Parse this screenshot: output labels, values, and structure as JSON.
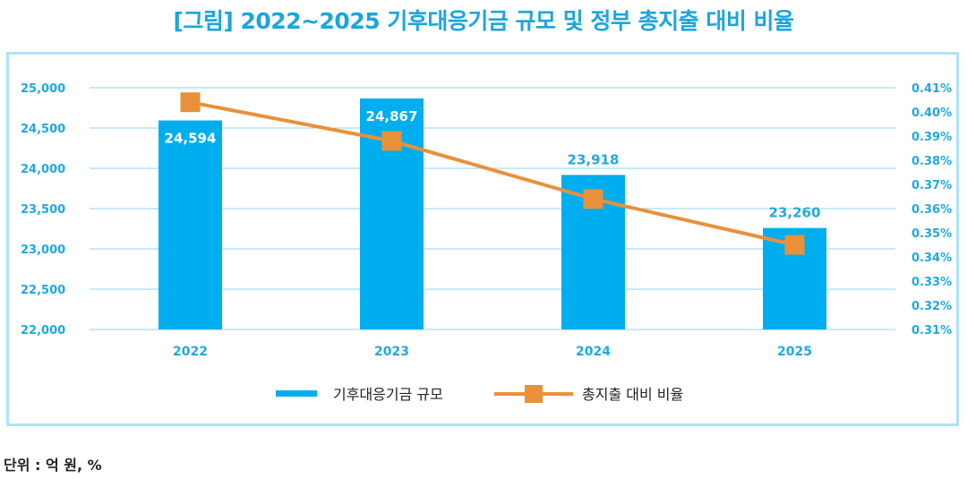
{
  "title": "[그림] 2022~2025 기후대응기금 규모 및 정부 총지출 대비 비율",
  "unit_note": "단위 : 억 원, %",
  "colors": {
    "bar": "#00aeef",
    "line": "#e8913a",
    "title": "#1ba6dc",
    "axis_text": "#21a9dd",
    "grid": "#8fd6ee",
    "frame": "#aee3f3"
  },
  "chart_data": {
    "type": "bar",
    "categories": [
      "2022",
      "2023",
      "2024",
      "2025"
    ],
    "series": [
      {
        "name": "기후대응기금 규모",
        "type": "bar",
        "axis": "left",
        "values": [
          24594,
          24867,
          23918,
          23260
        ],
        "labels": [
          "24,594",
          "24,867",
          "23,918",
          "23,260"
        ]
      },
      {
        "name": "총지출 대비 비율",
        "type": "line",
        "axis": "right",
        "values": [
          0.404,
          0.388,
          0.364,
          0.345
        ]
      }
    ],
    "y_left": {
      "ylim": [
        22000,
        25000
      ],
      "ticks": [
        "22,000",
        "22,500",
        "23,000",
        "23,500",
        "24,000",
        "24,500",
        "25,000"
      ]
    },
    "y_right": {
      "ylim": [
        0.31,
        0.41
      ],
      "ticks": [
        "0.31%",
        "0.32%",
        "0.33%",
        "0.34%",
        "0.35%",
        "0.36%",
        "0.37%",
        "0.38%",
        "0.39%",
        "0.40%",
        "0.41%"
      ]
    },
    "grid": true,
    "legend": "bottom"
  }
}
